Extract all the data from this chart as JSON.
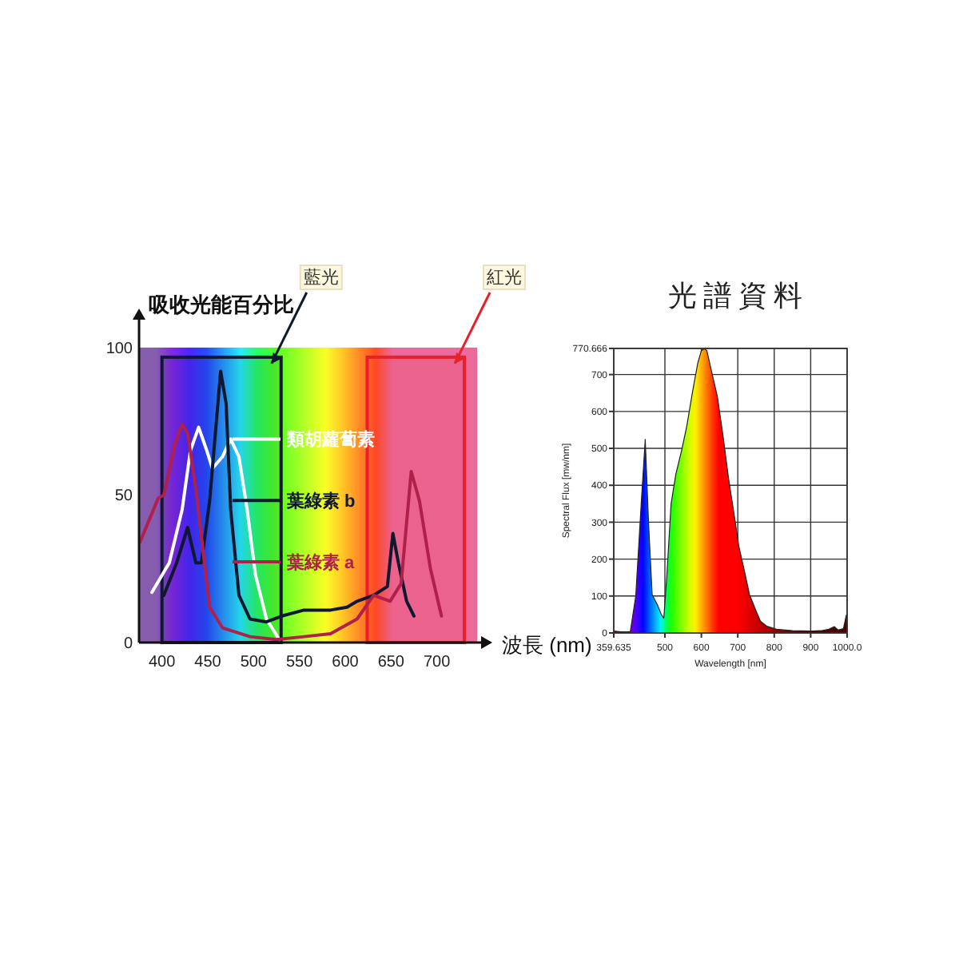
{
  "chart_data": [
    {
      "type": "line",
      "ylabel": "吸收光能百分比",
      "xlabel": "波長 (nm)",
      "xlim": [
        375,
        750
      ],
      "ylim": [
        0,
        110
      ],
      "xticks": [
        400,
        450,
        500,
        550,
        600,
        650,
        700
      ],
      "yticks": [
        0,
        50,
        100
      ],
      "legend": "center",
      "bands": [
        {
          "axis": "x",
          "from": 400,
          "to": 530,
          "label": "藍光",
          "color": "#101830"
        },
        {
          "axis": "x",
          "from": 624,
          "to": 730,
          "label": "紅光",
          "color": "#e8202a"
        }
      ],
      "series": [
        {
          "name": "類胡蘿蔔素",
          "color": "#ffffff",
          "x": [
            389,
            408,
            422,
            431,
            440,
            449,
            455,
            466,
            475,
            484,
            493,
            502,
            514,
            528
          ],
          "values": [
            17,
            27,
            45,
            65,
            73,
            65,
            59,
            63,
            69,
            63,
            45,
            23,
            8,
            1
          ]
        },
        {
          "name": "葉綠素 b",
          "color": "#101830",
          "x": [
            402,
            416,
            428,
            437,
            443,
            452,
            464,
            470,
            475,
            484,
            496,
            514,
            531,
            555,
            584,
            602,
            613,
            631,
            646,
            652,
            658,
            667,
            675
          ],
          "values": [
            16,
            27,
            39,
            27,
            27,
            48,
            92,
            81,
            45,
            16,
            8,
            7,
            9,
            11,
            11,
            12,
            14,
            16,
            19,
            37,
            27,
            14,
            9
          ]
        },
        {
          "name": "葉綠素 a",
          "color": "#b0204a",
          "x": [
            376,
            396,
            402,
            414,
            422,
            428,
            437,
            446,
            452,
            466,
            496,
            525,
            555,
            584,
            613,
            631,
            649,
            661,
            672,
            681,
            693,
            705
          ],
          "values": [
            34,
            49,
            50,
            67,
            74,
            71,
            52,
            28,
            12,
            5,
            2,
            1,
            2,
            3,
            8,
            16,
            14,
            20,
            58,
            48,
            25,
            9
          ]
        }
      ]
    },
    {
      "type": "area",
      "title": "光譜資料",
      "xlabel": "Wavelength [nm]",
      "ylabel": "Spectral Flux [mw/nm]",
      "xlim": [
        359.635,
        1000
      ],
      "ylim": [
        0,
        770.666
      ],
      "grid": true,
      "xticks": [
        {
          "value": 359.635,
          "label": "359.635"
        },
        500,
        600,
        700,
        800,
        900,
        {
          "value": 1000,
          "label": "1000.0"
        }
      ],
      "yticks": [
        0,
        100,
        200,
        300,
        400,
        500,
        600,
        700,
        {
          "value": 770.666,
          "label": "770.666"
        }
      ],
      "series": [
        {
          "x": [
            359.635,
            380,
            405,
            420,
            435,
            446,
            455,
            465,
            480,
            490,
            497,
            505,
            517,
            530,
            546,
            560,
            576,
            590,
            600,
            608,
            615,
            630,
            644,
            660,
            674,
            690,
            703,
            720,
            732,
            750,
            762,
            780,
            806,
            850,
            900,
            928,
            950,
            965,
            975,
            990,
            998,
            1000
          ],
          "values": [
            5,
            3,
            3,
            100,
            350,
            524,
            300,
            104,
            75,
            50,
            40,
            150,
            350,
            430,
            495,
            560,
            654,
            730,
            765,
            770,
            765,
            700,
            640,
            530,
            423,
            320,
            234,
            160,
            104,
            60,
            32,
            18,
            10,
            6,
            5,
            6,
            10,
            17,
            8,
            12,
            49,
            5
          ]
        }
      ]
    }
  ]
}
